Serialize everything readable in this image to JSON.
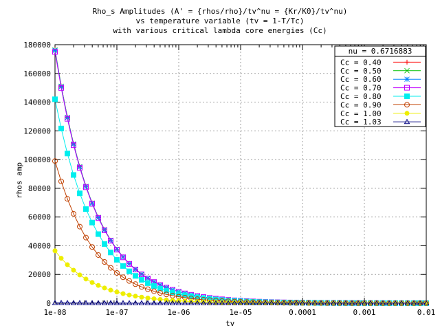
{
  "chart_data": {
    "type": "line",
    "title_lines": [
      "Rho_s Amplitudes (A' = {rhos/rho}/tv^nu = {Kr/K0}/tv^nu)",
      "vs temperature variable (tv = 1-T/Tc)",
      "with various critical lambda core energies (Cc)"
    ],
    "xlabel": "tv",
    "ylabel": "rhos amp",
    "x_scale": "log",
    "xlim": [
      1e-08,
      0.01
    ],
    "ylim": [
      0,
      180000
    ],
    "x_ticks": [
      "1e-08",
      "1e-07",
      "1e-06",
      "1e-05",
      "0.0001",
      "0.001",
      "0.01"
    ],
    "y_ticks": [
      "0",
      "20000",
      "40000",
      "60000",
      "80000",
      "100000",
      "120000",
      "140000",
      "160000",
      "180000"
    ],
    "grid": true,
    "legend_position": "top-right",
    "legend_title": "nu = 0.6716883",
    "nu": 0.6716883,
    "series": [
      {
        "name": "Cc = 0.40",
        "color": "#ff0000",
        "marker": "plus",
        "amp_at_1e-8": 176500
      },
      {
        "name": "Cc = 0.50",
        "color": "#00c000",
        "marker": "cross",
        "amp_at_1e-8": 176300
      },
      {
        "name": "Cc = 0.60",
        "color": "#0080ff",
        "marker": "star",
        "amp_at_1e-8": 176000
      },
      {
        "name": "Cc = 0.70",
        "color": "#c000ff",
        "marker": "square",
        "amp_at_1e-8": 175000
      },
      {
        "name": "Cc = 0.80",
        "color": "#00eeee",
        "marker": "filled-square",
        "amp_at_1e-8": 142000
      },
      {
        "name": "Cc = 0.90",
        "color": "#c04000",
        "marker": "circle",
        "amp_at_1e-8": 99000
      },
      {
        "name": "Cc = 1.00",
        "color": "#eeee00",
        "marker": "filled-circle",
        "amp_at_1e-8": 36500
      },
      {
        "name": "Cc = 1.03",
        "color": "#000080",
        "marker": "triangle",
        "amp_at_1e-8": 200
      }
    ]
  }
}
